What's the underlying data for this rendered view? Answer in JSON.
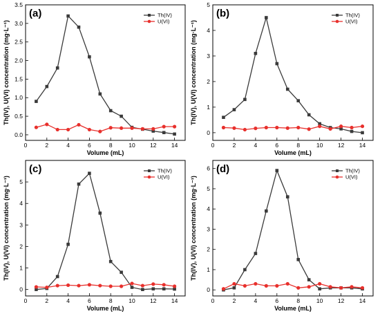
{
  "chart_data": [
    {
      "type": "line",
      "panel_label": "(a)",
      "xlabel": "Volume (mL)",
      "ylabel": "Th(IV), U(VI) concentration (mg·L⁻¹)",
      "xlim": [
        0,
        15
      ],
      "ylim": [
        -0.15,
        3.5
      ],
      "xticks": [
        0,
        2,
        4,
        6,
        8,
        10,
        12,
        14
      ],
      "yticks": [
        0.0,
        0.5,
        1.0,
        1.5,
        2.0,
        2.5,
        3.0,
        3.5
      ],
      "ytick_labels": [
        "0.0",
        "0.5",
        "1.0",
        "1.5",
        "2.0",
        "2.5",
        "3.0",
        "3.5"
      ],
      "ylabel_shown": true,
      "legend_position": "top-right",
      "x": [
        1,
        2,
        3,
        4,
        5,
        6,
        7,
        8,
        9,
        10,
        11,
        12,
        13,
        14
      ],
      "series": [
        {
          "name": "Th(IV)",
          "color": "#3a3a3a",
          "marker": "square",
          "values": [
            0.9,
            1.3,
            1.8,
            3.2,
            2.9,
            2.1,
            1.1,
            0.65,
            0.5,
            0.2,
            0.15,
            0.1,
            0.06,
            0.02
          ]
        },
        {
          "name": "U(VI)",
          "color": "#e8302c",
          "marker": "circle",
          "values": [
            0.2,
            0.28,
            0.14,
            0.14,
            0.27,
            0.14,
            0.09,
            0.19,
            0.18,
            0.18,
            0.16,
            0.16,
            0.22,
            0.22
          ]
        }
      ]
    },
    {
      "type": "line",
      "panel_label": "(b)",
      "xlabel": "Volume (mL)",
      "ylabel": "Th(IV), U(VI) concentration (mg·L⁻¹)",
      "xlim": [
        0,
        15
      ],
      "ylim": [
        -0.3,
        5
      ],
      "xticks": [
        0,
        2,
        4,
        6,
        8,
        10,
        12,
        14
      ],
      "yticks": [
        0,
        1,
        2,
        3,
        4,
        5
      ],
      "ytick_labels": [
        "0",
        "1",
        "2",
        "3",
        "4",
        "5"
      ],
      "ylabel_shown": true,
      "legend_position": "top-right",
      "x": [
        1,
        2,
        3,
        4,
        5,
        6,
        7,
        8,
        9,
        10,
        11,
        12,
        13,
        14
      ],
      "series": [
        {
          "name": "Th(IV)",
          "color": "#3a3a3a",
          "marker": "square",
          "values": [
            0.6,
            0.9,
            1.3,
            3.1,
            4.5,
            2.7,
            1.7,
            1.25,
            0.7,
            0.35,
            0.2,
            0.15,
            0.05,
            0.0
          ]
        },
        {
          "name": "U(VI)",
          "color": "#e8302c",
          "marker": "circle",
          "values": [
            0.2,
            0.18,
            0.12,
            0.17,
            0.2,
            0.2,
            0.18,
            0.2,
            0.14,
            0.25,
            0.15,
            0.25,
            0.2,
            0.25
          ]
        }
      ]
    },
    {
      "type": "line",
      "panel_label": "(c)",
      "xlabel": "Volume (mL)",
      "ylabel": "Th(IV), U(VI) concentration (mg·L⁻¹)",
      "xlim": [
        0,
        15
      ],
      "ylim": [
        -0.3,
        6
      ],
      "xticks": [
        0,
        2,
        4,
        6,
        8,
        10,
        12,
        14
      ],
      "yticks": [
        0,
        1,
        2,
        3,
        4,
        5
      ],
      "ytick_labels": [
        "0",
        "1",
        "2",
        "3",
        "4",
        "5"
      ],
      "ylabel_shown": true,
      "legend_position": "top-right",
      "x": [
        1,
        2,
        3,
        4,
        5,
        6,
        7,
        8,
        9,
        10,
        11,
        12,
        13,
        14
      ],
      "series": [
        {
          "name": "Th(IV)",
          "color": "#3a3a3a",
          "marker": "square",
          "values": [
            0.0,
            0.05,
            0.6,
            2.1,
            4.9,
            5.4,
            3.55,
            1.3,
            0.8,
            0.1,
            0.0,
            0.03,
            0.03,
            0.02
          ]
        },
        {
          "name": "U(VI)",
          "color": "#e8302c",
          "marker": "circle",
          "values": [
            0.12,
            0.1,
            0.18,
            0.2,
            0.18,
            0.22,
            0.18,
            0.15,
            0.15,
            0.28,
            0.18,
            0.25,
            0.22,
            0.15
          ]
        }
      ]
    },
    {
      "type": "line",
      "panel_label": "(d)",
      "xlabel": "Volume (mL)",
      "ylabel": "Th(IV), U(VI) concentration (mg·L⁻¹)",
      "xlim": [
        0,
        15
      ],
      "ylim": [
        -0.3,
        6.4
      ],
      "xticks": [
        0,
        2,
        4,
        6,
        8,
        10,
        12,
        14
      ],
      "yticks": [
        0,
        1,
        2,
        3,
        4,
        5,
        6
      ],
      "ytick_labels": [
        "0",
        "1",
        "2",
        "3",
        "4",
        "5",
        "6"
      ],
      "ylabel_shown": true,
      "legend_position": "top-right",
      "x": [
        1,
        2,
        3,
        4,
        5,
        6,
        7,
        8,
        9,
        10,
        11,
        12,
        13,
        14
      ],
      "series": [
        {
          "name": "Th(IV)",
          "color": "#3a3a3a",
          "marker": "square",
          "values": [
            0.0,
            0.1,
            1.0,
            1.8,
            3.9,
            5.9,
            4.6,
            1.5,
            0.5,
            0.05,
            0.1,
            0.1,
            0.1,
            0.05
          ]
        },
        {
          "name": "U(VI)",
          "color": "#e8302c",
          "marker": "circle",
          "values": [
            0.05,
            0.3,
            0.2,
            0.3,
            0.2,
            0.2,
            0.3,
            0.1,
            0.15,
            0.3,
            0.15,
            0.1,
            0.15,
            0.1
          ]
        }
      ]
    }
  ]
}
